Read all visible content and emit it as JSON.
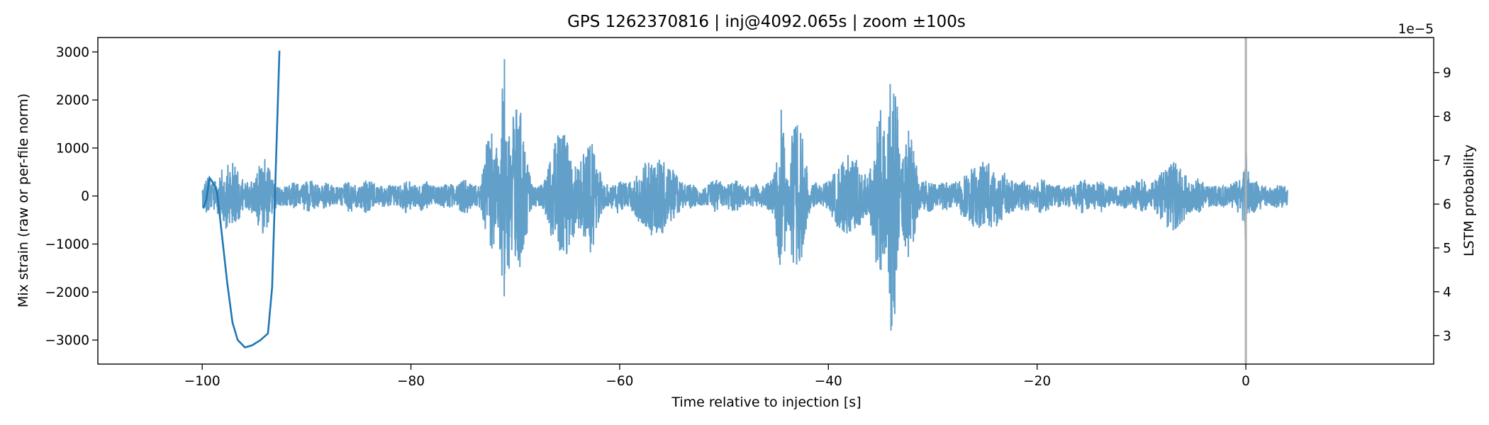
{
  "chart_data": {
    "type": "line",
    "title": "GPS 1262370816 | inj@4092.065s | zoom ±100s",
    "xlabel": "Time relative to injection [s]",
    "ylabel_left": "Mix strain (raw or per-file norm)",
    "ylabel_right": "LSTM probability",
    "right_axis_multiplier": "1e−5",
    "xlim": [
      -110,
      18
    ],
    "ylim_left": [
      -3500,
      3300
    ],
    "ylim_right": [
      2.35,
      9.8
    ],
    "x_ticks": [
      -100,
      -80,
      -60,
      -40,
      -20,
      0
    ],
    "x_tick_labels": [
      "−100",
      "−80",
      "−60",
      "−40",
      "−20",
      "0"
    ],
    "y_left_ticks": [
      -3000,
      -2000,
      -1000,
      0,
      1000,
      2000,
      3000
    ],
    "y_left_tick_labels": [
      "−3000",
      "−2000",
      "−1000",
      "0",
      "1000",
      "2000",
      "3000"
    ],
    "y_right_ticks": [
      3,
      4,
      5,
      6,
      7,
      8,
      9
    ],
    "y_right_tick_labels": [
      "3",
      "4",
      "5",
      "6",
      "7",
      "8",
      "9"
    ],
    "grid": false,
    "injection_marker_x": 0,
    "series": [
      {
        "axis": "left",
        "kind": "strain-waveform",
        "color": "#1f77b4",
        "x_range": [
          -100,
          4
        ],
        "baseline_amplitude": 380,
        "bursts": [
          {
            "t": -99.5,
            "peak": 450,
            "width": 0.6
          },
          {
            "t": -97.3,
            "peak": 750,
            "width": 1.5
          },
          {
            "t": -94.2,
            "peak": 850,
            "width": 1.0
          },
          {
            "t": -71.0,
            "peak": 2900,
            "width": 0.5
          },
          {
            "t": -69.8,
            "peak": 2000,
            "width": 1.0
          },
          {
            "t": -72.3,
            "peak": 1500,
            "width": 0.8
          },
          {
            "t": -65.5,
            "peak": 1450,
            "width": 1.5
          },
          {
            "t": -63.0,
            "peak": 1250,
            "width": 1.2
          },
          {
            "t": -56.5,
            "peak": 850,
            "width": 2.5
          },
          {
            "t": -44.5,
            "peak": 1800,
            "width": 0.6
          },
          {
            "t": -43.0,
            "peak": 1650,
            "width": 1.0
          },
          {
            "t": -38.0,
            "peak": 900,
            "width": 2.0
          },
          {
            "t": -33.8,
            "peak": 3150,
            "width": 0.6
          },
          {
            "t": -35.0,
            "peak": 1800,
            "width": 1.0
          },
          {
            "t": -32.3,
            "peak": 1500,
            "width": 0.8
          },
          {
            "t": -25.0,
            "peak": 750,
            "width": 3.0
          },
          {
            "t": -7.0,
            "peak": 750,
            "width": 2.0
          },
          {
            "t": 0.0,
            "peak": 1000,
            "width": 0.4
          }
        ]
      },
      {
        "axis": "right",
        "kind": "lstm-probability",
        "color": "#1f77b4",
        "x": [
          -99.9,
          -99.6,
          -99.3,
          -99.0,
          -98.6,
          -98.3,
          -97.6,
          -97.1,
          -96.6,
          -95.9,
          -95.2,
          -94.4,
          -93.7,
          -93.3,
          -92.6
        ],
        "values": [
          5.9,
          6.1,
          6.6,
          6.5,
          6.3,
          5.7,
          4.2,
          3.3,
          2.9,
          2.73,
          2.78,
          2.9,
          3.05,
          4.1,
          9.5
        ]
      }
    ]
  }
}
